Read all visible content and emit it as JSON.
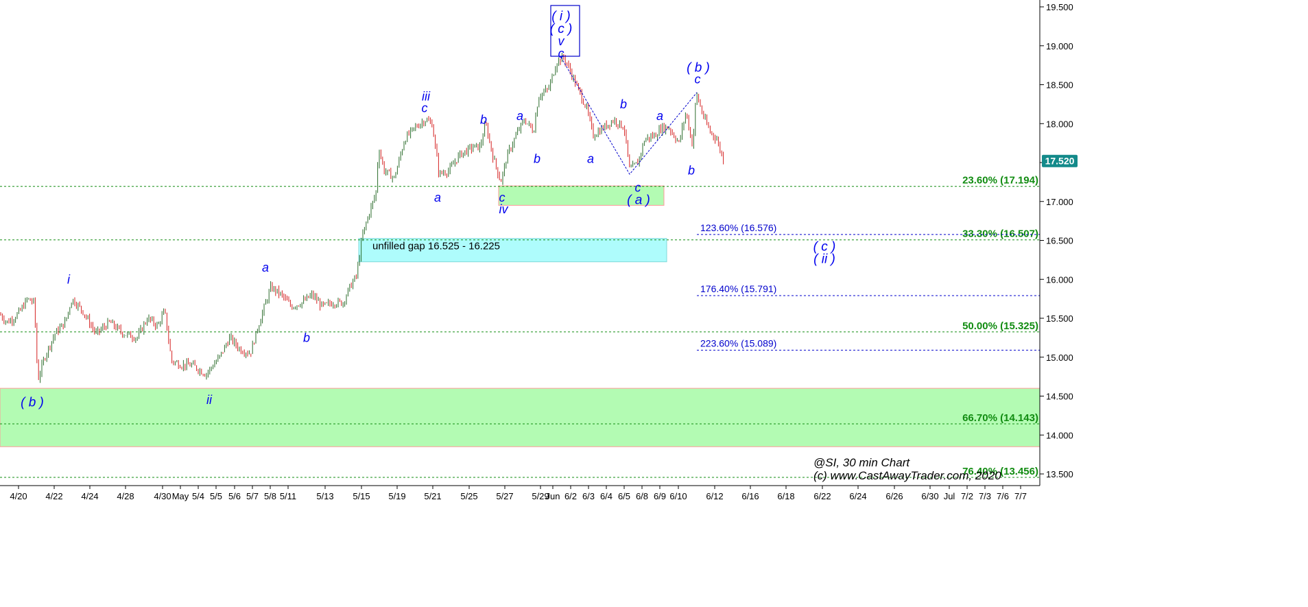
{
  "chart_data": {
    "type": "candlestick",
    "symbol": "@SI",
    "interval": "30 min",
    "y_range": [
      13.4,
      19.6
    ],
    "y_ticks": [
      "19.500",
      "19.000",
      "18.500",
      "18.000",
      "17.500",
      "17.000",
      "16.500",
      "16.000",
      "15.500",
      "15.000",
      "14.500",
      "14.000",
      "13.500"
    ],
    "x_ticks": [
      "4/20",
      "4/22",
      "4/24",
      "4/28",
      "4/30",
      "May",
      "5/4",
      "5/5",
      "5/6",
      "5/7",
      "5/8",
      "5/11",
      "5/13",
      "5/15",
      "5/19",
      "5/21",
      "5/25",
      "5/27",
      "5/29",
      "Jun",
      "6/2",
      "6/3",
      "6/4",
      "6/5",
      "6/8",
      "6/9",
      "6/10",
      "6/12",
      "6/16",
      "6/18",
      "6/22",
      "6/24",
      "6/26",
      "6/30",
      "Jul",
      "7/2",
      "7/3",
      "7/6",
      "7/7"
    ],
    "last_price": "17.520",
    "price_path": [
      [
        0,
        15.55
      ],
      [
        10,
        15.45
      ],
      [
        20,
        15.5
      ],
      [
        30,
        15.6
      ],
      [
        40,
        15.75
      ],
      [
        50,
        15.7
      ],
      [
        55,
        14.7
      ],
      [
        65,
        15.0
      ],
      [
        80,
        15.3
      ],
      [
        95,
        15.45
      ],
      [
        105,
        15.75
      ],
      [
        120,
        15.6
      ],
      [
        140,
        15.3
      ],
      [
        160,
        15.45
      ],
      [
        180,
        15.3
      ],
      [
        200,
        15.25
      ],
      [
        215,
        15.5
      ],
      [
        230,
        15.4
      ],
      [
        240,
        15.6
      ],
      [
        250,
        14.95
      ],
      [
        265,
        14.9
      ],
      [
        280,
        14.9
      ],
      [
        300,
        14.78
      ],
      [
        320,
        15.0
      ],
      [
        335,
        15.25
      ],
      [
        350,
        15.1
      ],
      [
        365,
        15.05
      ],
      [
        380,
        15.5
      ],
      [
        395,
        15.9
      ],
      [
        410,
        15.8
      ],
      [
        425,
        15.65
      ],
      [
        440,
        15.7
      ],
      [
        455,
        15.8
      ],
      [
        470,
        15.65
      ],
      [
        485,
        15.7
      ],
      [
        500,
        15.7
      ],
      [
        510,
        15.9
      ],
      [
        520,
        16.05
      ],
      [
        528,
        16.55
      ],
      [
        540,
        16.9
      ],
      [
        548,
        17.1
      ],
      [
        552,
        17.7
      ],
      [
        560,
        17.4
      ],
      [
        575,
        17.3
      ],
      [
        590,
        17.8
      ],
      [
        605,
        17.95
      ],
      [
        620,
        18.05
      ],
      [
        630,
        18.0
      ],
      [
        640,
        17.35
      ],
      [
        655,
        17.4
      ],
      [
        670,
        17.6
      ],
      [
        690,
        17.7
      ],
      [
        700,
        17.7
      ],
      [
        708,
        18.0
      ],
      [
        718,
        17.6
      ],
      [
        730,
        17.25
      ],
      [
        740,
        17.6
      ],
      [
        755,
        17.9
      ],
      [
        765,
        18.05
      ],
      [
        778,
        17.9
      ],
      [
        785,
        18.35
      ],
      [
        800,
        18.45
      ],
      [
        812,
        18.8
      ],
      [
        822,
        18.85
      ],
      [
        830,
        18.7
      ],
      [
        845,
        18.4
      ],
      [
        855,
        18.2
      ],
      [
        865,
        17.85
      ],
      [
        880,
        17.95
      ],
      [
        895,
        18.05
      ],
      [
        910,
        17.95
      ],
      [
        918,
        17.4
      ],
      [
        930,
        17.5
      ],
      [
        940,
        17.8
      ],
      [
        955,
        17.85
      ],
      [
        965,
        17.95
      ],
      [
        975,
        17.95
      ],
      [
        990,
        17.75
      ],
      [
        1000,
        18.15
      ],
      [
        1010,
        17.7
      ],
      [
        1015,
        18.4
      ],
      [
        1025,
        18.1
      ],
      [
        1035,
        17.9
      ],
      [
        1045,
        17.8
      ],
      [
        1055,
        17.52
      ]
    ],
    "fib_levels": [
      {
        "label": "23.60% (17.194)",
        "value": 17.194
      },
      {
        "label": "33.30% (16.507)",
        "value": 16.507
      },
      {
        "label": "50.00% (15.325)",
        "value": 15.325
      },
      {
        "label": "66.70% (14.143)",
        "value": 14.143
      },
      {
        "label": "76.40% (13.456)",
        "value": 13.456
      }
    ],
    "extension_levels": [
      {
        "label": "123.60% (16.576)",
        "value": 16.576
      },
      {
        "label": "176.40% (15.791)",
        "value": 15.791
      },
      {
        "label": "223.60% (15.089)",
        "value": 15.089
      }
    ],
    "zones": [
      {
        "kind": "gap",
        "label": "unfilled gap 16.525 - 16.225",
        "low": 16.225,
        "high": 16.525
      },
      {
        "kind": "support-top",
        "low": 16.95,
        "high": 17.2
      },
      {
        "kind": "support-bottom",
        "low": 13.85,
        "high": 14.6
      }
    ],
    "wave_labels": [
      {
        "text": "( b )",
        "xi": 47,
        "v": 14.42
      },
      {
        "text": "i",
        "xi": 100,
        "v": 16.0
      },
      {
        "text": "ii",
        "xi": 305,
        "v": 14.45
      },
      {
        "text": "a",
        "xi": 387,
        "v": 16.15
      },
      {
        "text": "b",
        "xi": 447,
        "v": 15.25
      },
      {
        "text": "iii",
        "xi": 621,
        "v": 18.35
      },
      {
        "text": "c",
        "xi": 619,
        "v": 18.2
      },
      {
        "text": "a",
        "xi": 638,
        "v": 17.05
      },
      {
        "text": "b",
        "xi": 705,
        "v": 18.05
      },
      {
        "text": "c",
        "xi": 732,
        "v": 17.05
      },
      {
        "text": "iv",
        "xi": 734,
        "v": 16.9
      },
      {
        "text": "a",
        "xi": 758,
        "v": 18.1
      },
      {
        "text": "b",
        "xi": 783,
        "v": 17.55
      },
      {
        "text": "( i )",
        "xi": 818,
        "v": 19.38
      },
      {
        "text": "( c )",
        "xi": 818,
        "v": 19.22
      },
      {
        "text": "v",
        "xi": 818,
        "v": 19.06
      },
      {
        "text": "c",
        "xi": 818,
        "v": 18.9
      },
      {
        "text": "a",
        "xi": 861,
        "v": 17.55
      },
      {
        "text": "b",
        "xi": 909,
        "v": 18.25
      },
      {
        "text": "c",
        "xi": 930,
        "v": 17.18
      },
      {
        "text": "( a )",
        "xi": 931,
        "v": 17.02
      },
      {
        "text": "a",
        "xi": 962,
        "v": 18.1
      },
      {
        "text": "b",
        "xi": 1008,
        "v": 17.4
      },
      {
        "text": "( b )",
        "xi": 1018,
        "v": 18.72
      },
      {
        "text": "c",
        "xi": 1017,
        "v": 18.57
      },
      {
        "text": "( c )",
        "xi": 1202,
        "v": 16.42
      },
      {
        "text": "( ii )",
        "xi": 1202,
        "v": 16.26
      }
    ],
    "credit_lines": [
      "@SI, 30 min Chart",
      "(c) www.CastAwayTrader.com, 2020"
    ]
  },
  "colors": {
    "up_candle": "#2a6b2a",
    "down_candle": "#d42020",
    "fib_line": "#118c11",
    "extension_line": "#0000cc",
    "wave_label": "#0000ee",
    "gap_fill": "#aefcfc",
    "zone_fill": "#b3fbb3",
    "price_tag": "#138a8a"
  }
}
